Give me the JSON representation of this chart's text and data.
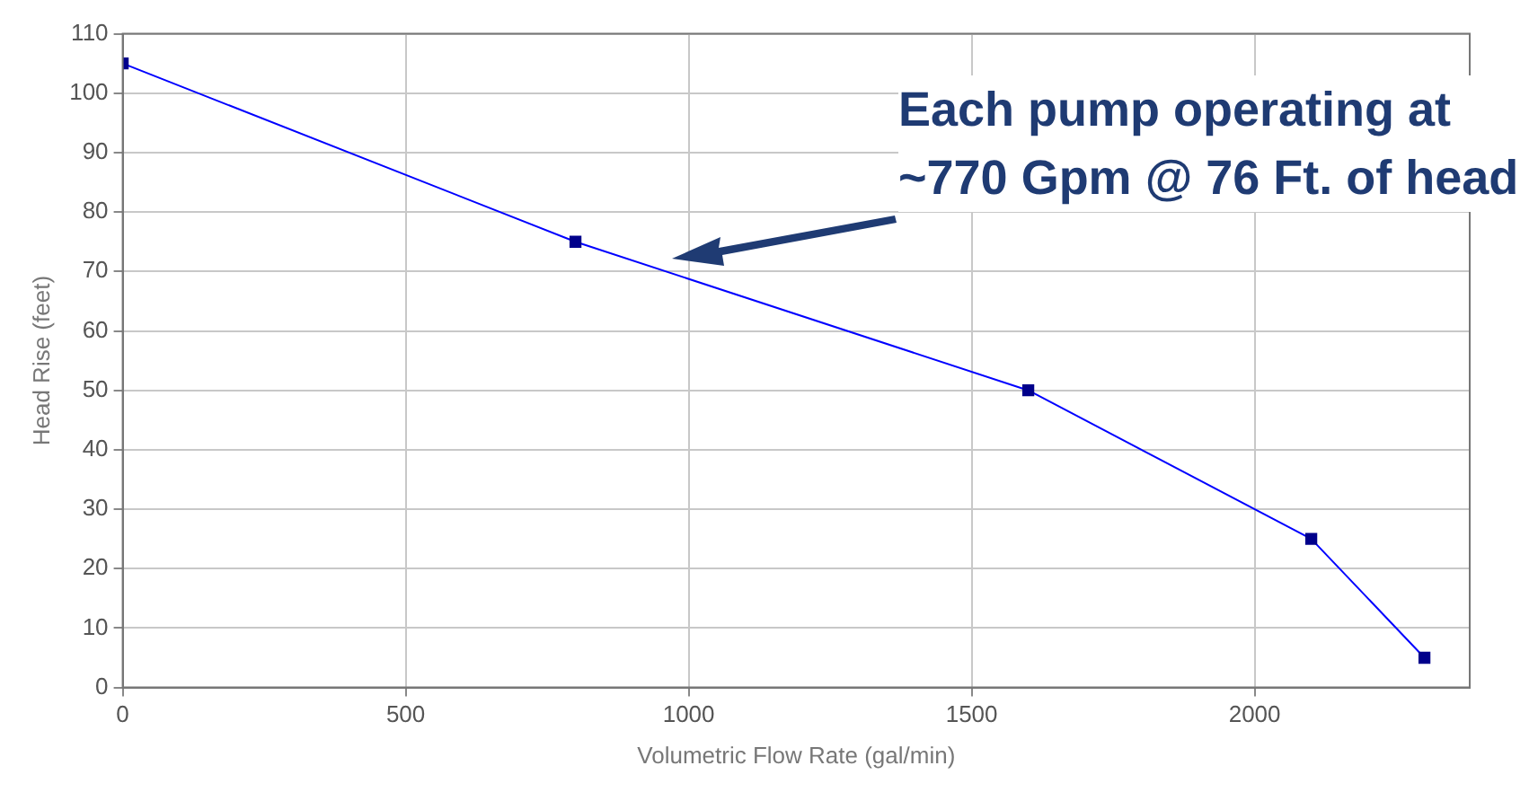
{
  "chart_data": {
    "type": "line",
    "xlabel": "Volumetric Flow Rate (gal/min)",
    "ylabel": "Head Rise (feet)",
    "x": [
      0,
      800,
      1600,
      2100,
      2300
    ],
    "series": [
      {
        "color": "#0000ff",
        "values": [
          105,
          75,
          50,
          25,
          5
        ]
      }
    ],
    "xlim": [
      0,
      2380
    ],
    "xticks": [
      0,
      500,
      1000,
      1500,
      2000
    ],
    "ylim": [
      0,
      110
    ],
    "yticks": [
      0,
      10,
      20,
      30,
      40,
      50,
      60,
      70,
      80,
      90,
      100,
      110
    ],
    "grid": true,
    "marker": "square",
    "line_style": "solid",
    "legend": false,
    "annotations": [
      "Each pump operating at ~770 Gpm @ 76 Ft. of head"
    ]
  }
}
